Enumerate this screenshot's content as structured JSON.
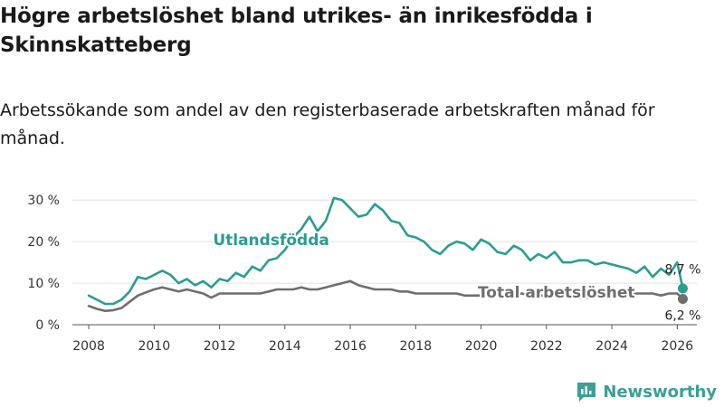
{
  "title": "Högre arbetslöshet bland utrikes- än inrikesfödda i Skinnskatteberg",
  "subtitle": "Arbetssökande som andel av den registerbaserade arbetskraften månad för månad.",
  "logo_text": "Newsworthy",
  "colors": {
    "utlandsfodda": "#2a9d8f",
    "total": "#6e6e6e",
    "grid": "#e0e0e0",
    "axis": "#555555"
  },
  "chart_data": {
    "type": "line",
    "title": "Högre arbetslöshet bland utrikes- än inrikesfödda i Skinnskatteberg",
    "xlabel": "",
    "ylabel": "",
    "xlim": [
      2007.5,
      2026.6
    ],
    "ylim": [
      0,
      32
    ],
    "x_ticks": [
      2008,
      2010,
      2012,
      2014,
      2016,
      2018,
      2020,
      2022,
      2024,
      2026
    ],
    "x_tick_labels": [
      "2008",
      "2010",
      "2012",
      "2014",
      "2016",
      "2018",
      "2020",
      "2022",
      "2024",
      "2026"
    ],
    "y_ticks": [
      0,
      10,
      20,
      30
    ],
    "y_tick_labels": [
      "0 %",
      "10 %",
      "20 %",
      "30 %"
    ],
    "grid": true,
    "series": [
      {
        "name": "Utlandsfödda",
        "label_year": 2011.8,
        "label_value": 20.5,
        "end_label": "8,7 %",
        "end_label_value": 13.4,
        "x": [
          2008.0,
          2008.25,
          2008.5,
          2008.75,
          2009.0,
          2009.25,
          2009.5,
          2009.75,
          2010.0,
          2010.25,
          2010.5,
          2010.75,
          2011.0,
          2011.25,
          2011.5,
          2011.75,
          2012.0,
          2012.25,
          2012.5,
          2012.75,
          2013.0,
          2013.25,
          2013.5,
          2013.75,
          2014.0,
          2014.25,
          2014.5,
          2014.75,
          2015.0,
          2015.25,
          2015.5,
          2015.75,
          2016.0,
          2016.25,
          2016.5,
          2016.75,
          2017.0,
          2017.25,
          2017.5,
          2017.75,
          2018.0,
          2018.25,
          2018.5,
          2018.75,
          2019.0,
          2019.25,
          2019.5,
          2019.75,
          2020.0,
          2020.25,
          2020.5,
          2020.75,
          2021.0,
          2021.25,
          2021.5,
          2021.75,
          2022.0,
          2022.25,
          2022.5,
          2022.75,
          2023.0,
          2023.25,
          2023.5,
          2023.75,
          2024.0,
          2024.25,
          2024.5,
          2024.75,
          2025.0,
          2025.25,
          2025.5,
          2025.75,
          2026.0,
          2026.17
        ],
        "values": [
          7.0,
          6.0,
          5.0,
          5.0,
          6.0,
          8.0,
          11.5,
          11.0,
          12.0,
          13.0,
          12.0,
          10.0,
          11.0,
          9.5,
          10.5,
          9.0,
          11.0,
          10.5,
          12.5,
          11.5,
          14.0,
          13.0,
          15.5,
          16.0,
          18.0,
          21.0,
          23.0,
          26.0,
          22.5,
          25.0,
          30.5,
          30.0,
          28.0,
          26.0,
          26.5,
          29.0,
          27.5,
          25.0,
          24.5,
          21.5,
          21.0,
          20.0,
          18.0,
          17.0,
          19.0,
          20.0,
          19.5,
          18.0,
          20.5,
          19.5,
          17.5,
          17.0,
          19.0,
          18.0,
          15.5,
          17.0,
          16.0,
          17.5,
          15.0,
          15.0,
          15.5,
          15.5,
          14.5,
          15.0,
          14.5,
          14.0,
          13.5,
          12.5,
          14.0,
          11.5,
          13.5,
          12.0,
          15.0,
          8.7
        ]
      },
      {
        "name": "Total arbetslöshet",
        "label_year": 2019.9,
        "label_value": 7.8,
        "end_label": "6,2 %",
        "end_label_value": 2.3,
        "x": [
          2008.0,
          2008.25,
          2008.5,
          2008.75,
          2009.0,
          2009.25,
          2009.5,
          2009.75,
          2010.0,
          2010.25,
          2010.5,
          2010.75,
          2011.0,
          2011.25,
          2011.5,
          2011.75,
          2012.0,
          2012.25,
          2012.5,
          2012.75,
          2013.0,
          2013.25,
          2013.5,
          2013.75,
          2014.0,
          2014.25,
          2014.5,
          2014.75,
          2015.0,
          2015.25,
          2015.5,
          2015.75,
          2016.0,
          2016.25,
          2016.5,
          2016.75,
          2017.0,
          2017.25,
          2017.5,
          2017.75,
          2018.0,
          2018.25,
          2018.5,
          2018.75,
          2019.0,
          2019.25,
          2019.5,
          2019.75,
          2020.0,
          2020.25,
          2020.5,
          2020.75,
          2021.0,
          2021.25,
          2021.5,
          2021.75,
          2022.0,
          2022.25,
          2022.5,
          2022.75,
          2023.0,
          2023.25,
          2023.5,
          2023.75,
          2024.0,
          2024.25,
          2024.5,
          2024.75,
          2025.0,
          2025.25,
          2025.5,
          2025.75,
          2026.0,
          2026.17
        ],
        "values": [
          4.5,
          3.8,
          3.3,
          3.5,
          4.0,
          5.5,
          7.0,
          7.8,
          8.5,
          9.0,
          8.5,
          8.0,
          8.5,
          8.0,
          7.5,
          6.5,
          7.5,
          7.5,
          7.5,
          7.5,
          7.5,
          7.5,
          8.0,
          8.5,
          8.5,
          8.5,
          9.0,
          8.5,
          8.5,
          9.0,
          9.5,
          10.0,
          10.5,
          9.5,
          9.0,
          8.5,
          8.5,
          8.5,
          8.0,
          8.0,
          7.5,
          7.5,
          7.5,
          7.5,
          7.5,
          7.5,
          7.0,
          7.0,
          7.0,
          7.5,
          7.0,
          7.0,
          7.0,
          7.5,
          7.0,
          7.0,
          7.0,
          7.0,
          7.0,
          7.0,
          6.5,
          6.5,
          7.0,
          7.0,
          7.5,
          7.0,
          7.0,
          7.5,
          7.5,
          7.5,
          7.0,
          7.5,
          7.5,
          6.2
        ]
      }
    ]
  }
}
